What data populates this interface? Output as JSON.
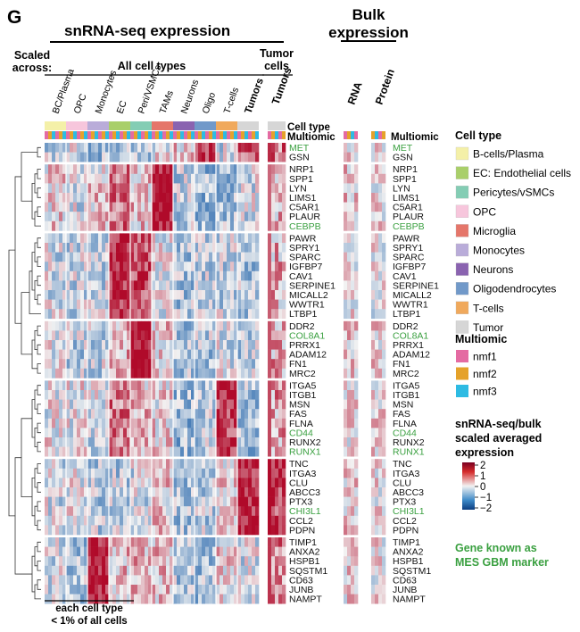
{
  "panel_letter": "G",
  "header": {
    "snrna_title": "snRNA-seq expression",
    "bulk_title_line1": "Bulk",
    "bulk_title_line2": "expression",
    "scaled_line1": "Scaled",
    "scaled_line2": "across:",
    "all_cell_types": "All cell types",
    "tumor_cells_line1": "Tumor",
    "tumor_cells_line2": "cells"
  },
  "columns": {
    "celltype_groups": [
      "BC/Plasma",
      "OPC",
      "Monocytes",
      "EC",
      "Peri/VSMCs",
      "TAMs",
      "Neurons",
      "Oligo",
      "T-cells",
      "Tumors"
    ],
    "tumor_column": "Tumors",
    "rna_column": "RNA",
    "protein_column": "Protein"
  },
  "annotation_labels": {
    "cell_type": "Cell type",
    "multiomic_left": "Multiomic",
    "multiomic_right": "Multiomic"
  },
  "gene_clusters": [
    [
      "MET",
      "GSN"
    ],
    [
      "NRP1",
      "SPP1",
      "LYN",
      "LIMS1",
      "C5AR1",
      "PLAUR",
      "CEBPB"
    ],
    [
      "PAWR",
      "SPRY1",
      "SPARC",
      "IGFBP7",
      "CAV1",
      "SERPINE1",
      "MICALL2",
      "WWTR1",
      "LTBP1"
    ],
    [
      "DDR2",
      "COL8A1",
      "PRRX1",
      "ADAM12",
      "FN1",
      "MRC2"
    ],
    [
      "ITGA5",
      "ITGB1",
      "MSN",
      "FAS",
      "FLNA",
      "CD44",
      "RUNX2",
      "RUNX1"
    ],
    [
      "TNC",
      "ITGA3",
      "CLU",
      "ABCC3",
      "PTX3",
      "CHI3L1",
      "CCL2",
      "PDPN"
    ],
    [
      "TIMP1",
      "ANXA2",
      "HSPB1",
      "SQSTM1",
      "CD63",
      "JUNB",
      "NAMPT"
    ]
  ],
  "mes_marker_genes": [
    "MET",
    "CEBPB",
    "COL8A1",
    "CD44",
    "RUNX1",
    "CHI3L1"
  ],
  "legend": {
    "cell_type_title": "Cell type",
    "cell_types": [
      {
        "label": "B-cells/Plasma",
        "color": "#f4f0a8"
      },
      {
        "label": "EC: Endothelial cells",
        "color": "#a9cf6a"
      },
      {
        "label": "Pericytes/vSMCs",
        "color": "#84cdb4"
      },
      {
        "label": "OPC",
        "color": "#f7c6dc"
      },
      {
        "label": "Microglia",
        "color": "#e5766a"
      },
      {
        "label": "Monocytes",
        "color": "#b9acd9"
      },
      {
        "label": "Neurons",
        "color": "#8a63b0"
      },
      {
        "label": "Oligodendrocytes",
        "color": "#7199c9"
      },
      {
        "label": "T-cells",
        "color": "#f0a95c"
      },
      {
        "label": "Tumor",
        "color": "#d6d6d6"
      }
    ],
    "multiomic_title": "Multiomic",
    "multiomic": [
      {
        "label": "nmf1",
        "color": "#e46ba2"
      },
      {
        "label": "nmf2",
        "color": "#e5a22a"
      },
      {
        "label": "nmf3",
        "color": "#2ebbe3"
      }
    ],
    "scale_title_line1": "snRNA-seq/bulk",
    "scale_title_line2": "scaled averaged",
    "scale_title_line3": "expression",
    "scale_ticks": [
      "2",
      "1",
      "0",
      "−1",
      "−2"
    ],
    "marker_note_line1": "Gene known as",
    "marker_note_line2": "MES GBM marker",
    "marker_color": "#3aa040"
  },
  "footer": {
    "line1": "each cell type",
    "line2": "< 1% of all cells"
  },
  "chart_data": {
    "type": "heatmap",
    "color_scale": {
      "min": -2,
      "max": 2,
      "low_color": "#1a5ea8",
      "mid_color": "#f2f2f2",
      "high_color": "#b00a2a"
    },
    "columns_snrna": [
      "BC/Plasma",
      "OPC",
      "Monocytes",
      "EC",
      "Peri/VSMCs",
      "TAMs",
      "Neurons",
      "Oligo",
      "T-cells",
      "Tumors"
    ],
    "columns_bulk": [
      "RNA",
      "Protein"
    ],
    "rows": [
      "MET",
      "GSN",
      "NRP1",
      "SPP1",
      "LYN",
      "LIMS1",
      "C5AR1",
      "PLAUR",
      "CEBPB",
      "PAWR",
      "SPRY1",
      "SPARC",
      "IGFBP7",
      "CAV1",
      "SERPINE1",
      "MICALL2",
      "WWTR1",
      "LTBP1",
      "DDR2",
      "COL8A1",
      "PRRX1",
      "ADAM12",
      "FN1",
      "MRC2",
      "ITGA5",
      "ITGB1",
      "MSN",
      "FAS",
      "FLNA",
      "CD44",
      "RUNX2",
      "RUNX1",
      "TNC",
      "ITGA3",
      "CLU",
      "ABCC3",
      "PTX3",
      "CHI3L1",
      "CCL2",
      "PDPN",
      "TIMP1",
      "ANXA2",
      "HSPB1",
      "SQSTM1",
      "CD63",
      "JUNB",
      "NAMPT"
    ],
    "cluster_mean_snrna": [
      [
        -0.3,
        -0.2,
        -0.6,
        -0.6,
        -0.6,
        0.0,
        0.3,
        1.6,
        -0.3,
        1.2
      ],
      [
        0.2,
        -0.2,
        0.3,
        1.0,
        0.4,
        1.9,
        -0.4,
        -0.7,
        -0.6,
        -0.2
      ],
      [
        -0.2,
        -0.3,
        -0.3,
        1.7,
        1.4,
        -0.1,
        -0.5,
        -0.4,
        -0.3,
        -0.5
      ],
      [
        0.0,
        -0.4,
        -0.3,
        0.6,
        2.0,
        0.3,
        -0.6,
        -0.5,
        -0.2,
        -0.4
      ],
      [
        0.0,
        0.0,
        -0.2,
        1.0,
        0.4,
        0.2,
        -0.7,
        -0.4,
        1.5,
        -0.6
      ],
      [
        -0.2,
        -0.1,
        -0.4,
        -0.4,
        -0.2,
        0.3,
        -0.6,
        -0.4,
        0.3,
        1.7
      ],
      [
        -0.2,
        -0.5,
        1.8,
        0.4,
        0.5,
        0.4,
        -0.5,
        -0.6,
        0.2,
        -0.2
      ]
    ],
    "cluster_mean_tumors": [
      1.0,
      0.4,
      0.5,
      0.6,
      0.7,
      1.5,
      0.9
    ],
    "cluster_mean_bulk": [
      [
        0.2,
        0.1
      ],
      [
        0.3,
        0.1
      ],
      [
        0.1,
        0.0
      ],
      [
        0.3,
        0.2
      ],
      [
        0.1,
        0.2
      ],
      [
        0.3,
        0.1
      ],
      [
        0.2,
        0.1
      ]
    ]
  }
}
